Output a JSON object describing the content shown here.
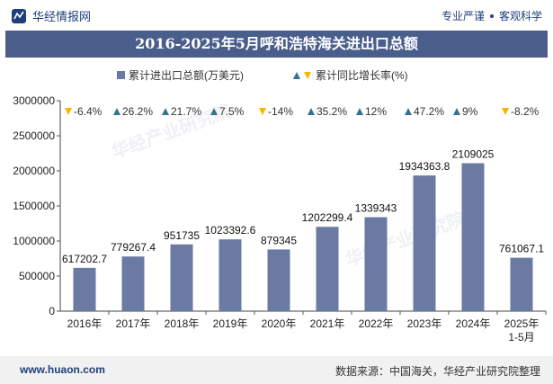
{
  "header": {
    "brand_name": "华经情报网",
    "tagline_left": "专业严谨",
    "tagline_right": "客观科学"
  },
  "footer": {
    "website": "www.huaon.com",
    "source": "数据来源：中国海关，华经产业研究院整理"
  },
  "colors": {
    "bar": "#6a7aa3",
    "title_bg": "#4a5e8c",
    "up": "#3a6f8f",
    "down": "#f2b705"
  },
  "chart_data": {
    "type": "bar",
    "title": "2016-2025年5月呼和浩特海关进出口总额",
    "legend": {
      "series_label": "累计进出口总额(万美元)",
      "growth_label": "累计同比增长率(%)"
    },
    "categories": [
      "2016年",
      "2017年",
      "2018年",
      "2019年",
      "2020年",
      "2021年",
      "2022年",
      "2023年",
      "2024年",
      "2025年\n1-5月"
    ],
    "values": [
      617202.7,
      779267.4,
      951735,
      1023392.6,
      879345,
      1202299.4,
      1339343,
      1934363.8,
      2109025,
      761067.1
    ],
    "value_labels": [
      "617202.7",
      "779267.4",
      "951735",
      "1023392.6",
      "879345",
      "1202299.4",
      "1339343",
      "1934363.8",
      "2109025",
      "761067.1"
    ],
    "growth": [
      -6.4,
      26.2,
      21.7,
      7.5,
      -14,
      35.2,
      12,
      47.2,
      9,
      -8.2
    ],
    "growth_labels": [
      "-6.4%",
      "26.2%",
      "21.7%",
      "7.5%",
      "-14%",
      "35.2%",
      "12%",
      "47.2%",
      "9%",
      "-8.2%"
    ],
    "ylim": [
      0,
      3000000
    ],
    "yticks": [
      0,
      500000,
      1000000,
      1500000,
      2000000,
      2500000,
      3000000
    ],
    "ytick_labels": [
      "0",
      "500000",
      "1000000",
      "1500000",
      "2000000",
      "2500000",
      "3000000"
    ]
  }
}
